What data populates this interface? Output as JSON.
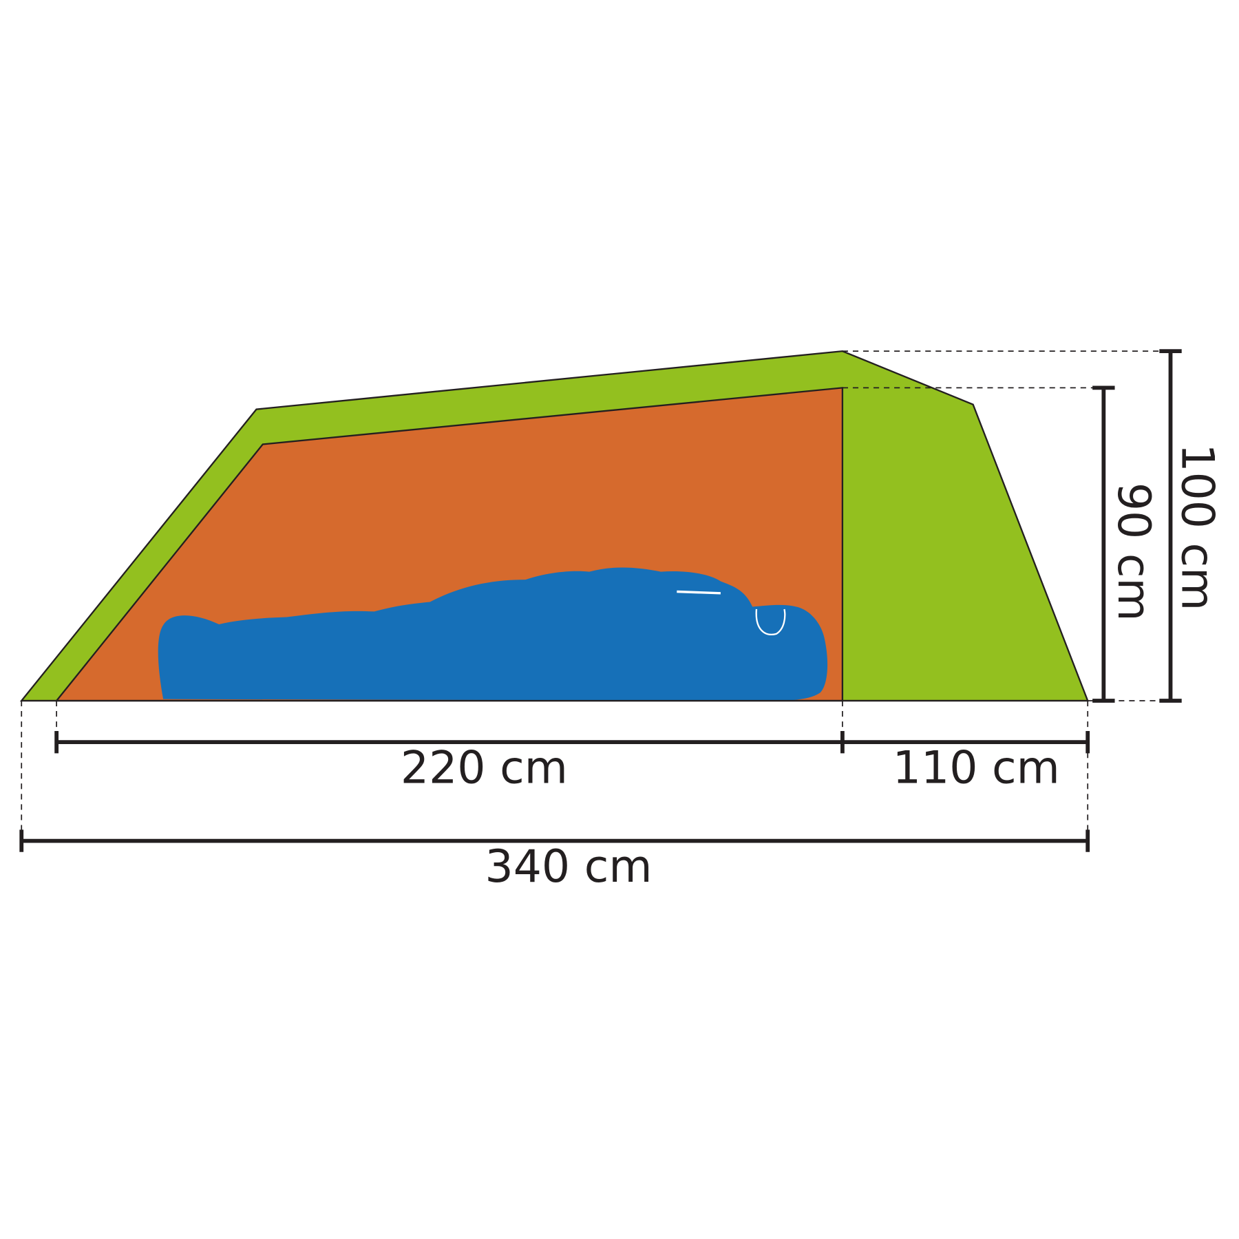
{
  "dimensions": {
    "inner_length": "220 cm",
    "vestibule_length": "110 cm",
    "total_length": "340 cm",
    "inner_height": "90 cm",
    "total_height": "100 cm"
  }
}
